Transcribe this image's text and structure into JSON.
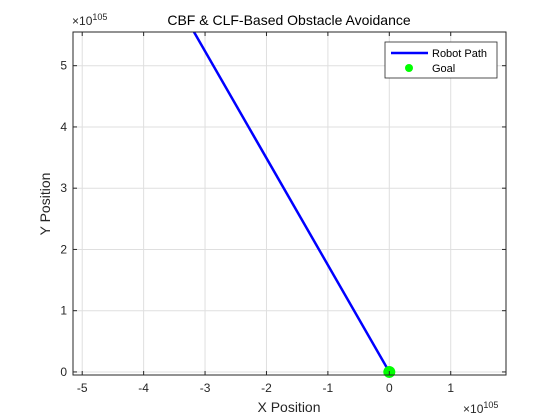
{
  "chart_data": {
    "type": "line",
    "title": "CBF & CLF-Based Obstacle Avoidance",
    "xlabel": "X Position",
    "ylabel": "Y Position",
    "x_multiplier": {
      "base": "10",
      "exponent": "105"
    },
    "y_multiplier": {
      "base": "10",
      "exponent": "105"
    },
    "xlim": [
      -5.15,
      1.9
    ],
    "ylim": [
      -0.05,
      5.55
    ],
    "xticks": [
      -5,
      -4,
      -3,
      -2,
      -1,
      0,
      1
    ],
    "yticks": [
      0,
      1,
      2,
      3,
      4,
      5
    ],
    "xtick_labels": [
      "-5",
      "-4",
      "-3",
      "-2",
      "-1",
      "0",
      "1"
    ],
    "ytick_labels": [
      "0",
      "1",
      "2",
      "3",
      "4",
      "5"
    ],
    "grid": true,
    "legend_position": "top-right",
    "series": [
      {
        "name": "Robot Path",
        "kind": "line",
        "color": "#0000ff",
        "x": [
          -3.18,
          0.0
        ],
        "y": [
          5.55,
          0.0
        ]
      },
      {
        "name": "Goal",
        "kind": "marker",
        "color": "#00ff00",
        "x": [
          0.0
        ],
        "y": [
          0.0
        ]
      }
    ]
  },
  "legend": {
    "items": [
      {
        "label": "Robot Path",
        "color": "#0000ff",
        "kind": "line"
      },
      {
        "label": "Goal",
        "color": "#00ff00",
        "kind": "marker"
      }
    ]
  }
}
